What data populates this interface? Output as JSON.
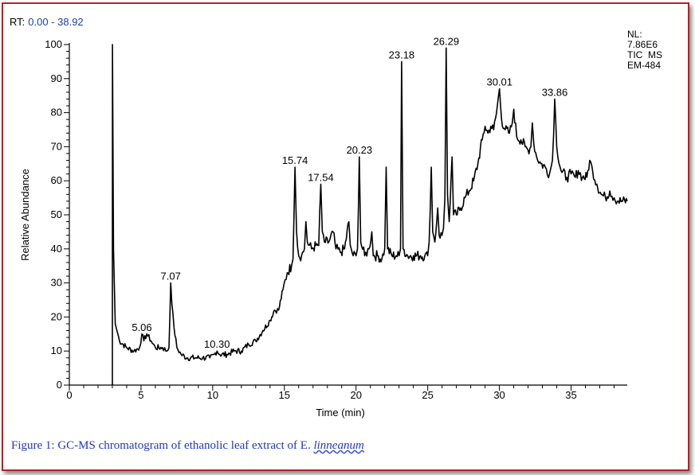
{
  "rt_label": "RT:",
  "rt_range": "0.00 - 38.92",
  "info": [
    "NL:",
    "7.86E6",
    "TIC  MS",
    "EM-484"
  ],
  "caption": {
    "text": "Figure 1: GC-MS chromatogram of ethanolic leaf extract of E. ",
    "species": "linneanum"
  },
  "chart_data": {
    "type": "line",
    "xlabel": "Time (min)",
    "ylabel": "Relative Abundance",
    "xlim": [
      0,
      38.92
    ],
    "ylim": [
      0,
      100
    ],
    "xticks": [
      0,
      5,
      10,
      15,
      20,
      25,
      30,
      35
    ],
    "yticks": [
      0,
      10,
      20,
      30,
      40,
      50,
      60,
      70,
      80,
      90,
      100
    ],
    "grid": false,
    "peak_labels": [
      {
        "label": "5.06",
        "x": 5.06,
        "y": 15
      },
      {
        "label": "7.07",
        "x": 7.07,
        "y": 30
      },
      {
        "label": "10.30",
        "x": 10.3,
        "y": 10
      },
      {
        "label": "15.74",
        "x": 15.74,
        "y": 64
      },
      {
        "label": "17.54",
        "x": 17.54,
        "y": 59
      },
      {
        "label": "20.23",
        "x": 20.23,
        "y": 67
      },
      {
        "label": "23.18",
        "x": 23.18,
        "y": 95
      },
      {
        "label": "26.29",
        "x": 26.29,
        "y": 99
      },
      {
        "label": "30.01",
        "x": 30.01,
        "y": 87
      },
      {
        "label": "33.86",
        "x": 33.86,
        "y": 84
      }
    ],
    "series": [
      {
        "values": [
          [
            3.0,
            0
          ],
          [
            3.01,
            100
          ],
          [
            3.08,
            40
          ],
          [
            3.2,
            18
          ],
          [
            3.5,
            13
          ],
          [
            4.0,
            11
          ],
          [
            4.5,
            10
          ],
          [
            4.9,
            11
          ],
          [
            5.06,
            15
          ],
          [
            5.2,
            13
          ],
          [
            5.4,
            15
          ],
          [
            5.7,
            13
          ],
          [
            6.0,
            11
          ],
          [
            6.5,
            11
          ],
          [
            6.8,
            10
          ],
          [
            6.95,
            11
          ],
          [
            7.07,
            30
          ],
          [
            7.15,
            24
          ],
          [
            7.3,
            17
          ],
          [
            7.5,
            11
          ],
          [
            7.8,
            9
          ],
          [
            8.2,
            8
          ],
          [
            8.8,
            8
          ],
          [
            9.3,
            8
          ],
          [
            9.8,
            8
          ],
          [
            10.1,
            9
          ],
          [
            10.3,
            10
          ],
          [
            10.5,
            9
          ],
          [
            11.0,
            9
          ],
          [
            11.5,
            10
          ],
          [
            12.0,
            10
          ],
          [
            12.5,
            12
          ],
          [
            13.0,
            13
          ],
          [
            13.5,
            16
          ],
          [
            14.0,
            19
          ],
          [
            14.3,
            22
          ],
          [
            14.6,
            22
          ],
          [
            14.9,
            28
          ],
          [
            15.2,
            33
          ],
          [
            15.5,
            35
          ],
          [
            15.6,
            37
          ],
          [
            15.74,
            64
          ],
          [
            15.85,
            45
          ],
          [
            16.0,
            38
          ],
          [
            16.2,
            38
          ],
          [
            16.4,
            40
          ],
          [
            16.5,
            48
          ],
          [
            16.6,
            42
          ],
          [
            16.9,
            40
          ],
          [
            17.2,
            41
          ],
          [
            17.4,
            41
          ],
          [
            17.54,
            59
          ],
          [
            17.65,
            45
          ],
          [
            17.8,
            42
          ],
          [
            18.1,
            42
          ],
          [
            18.4,
            45
          ],
          [
            18.6,
            40
          ],
          [
            18.9,
            39
          ],
          [
            19.2,
            40
          ],
          [
            19.5,
            48
          ],
          [
            19.6,
            41
          ],
          [
            19.8,
            38
          ],
          [
            20.0,
            38
          ],
          [
            20.1,
            40
          ],
          [
            20.23,
            67
          ],
          [
            20.33,
            42
          ],
          [
            20.6,
            38
          ],
          [
            20.9,
            40
          ],
          [
            21.1,
            45
          ],
          [
            21.2,
            38
          ],
          [
            21.5,
            38
          ],
          [
            21.8,
            37
          ],
          [
            22.0,
            40
          ],
          [
            22.1,
            64
          ],
          [
            22.2,
            40
          ],
          [
            22.5,
            38
          ],
          [
            22.8,
            38
          ],
          [
            23.0,
            38
          ],
          [
            23.1,
            40
          ],
          [
            23.18,
            95
          ],
          [
            23.28,
            40
          ],
          [
            23.6,
            38
          ],
          [
            24.0,
            38
          ],
          [
            24.5,
            38
          ],
          [
            24.8,
            38
          ],
          [
            25.0,
            38
          ],
          [
            25.1,
            42
          ],
          [
            25.25,
            64
          ],
          [
            25.35,
            45
          ],
          [
            25.5,
            42
          ],
          [
            25.7,
            52
          ],
          [
            25.8,
            44
          ],
          [
            26.0,
            44
          ],
          [
            26.1,
            46
          ],
          [
            26.2,
            55
          ],
          [
            26.29,
            99
          ],
          [
            26.38,
            56
          ],
          [
            26.5,
            48
          ],
          [
            26.7,
            67
          ],
          [
            26.8,
            50
          ],
          [
            27.0,
            50
          ],
          [
            27.3,
            52
          ],
          [
            27.6,
            55
          ],
          [
            27.9,
            57
          ],
          [
            28.2,
            60
          ],
          [
            28.5,
            65
          ],
          [
            28.8,
            72
          ],
          [
            29.0,
            76
          ],
          [
            29.2,
            74
          ],
          [
            29.4,
            76
          ],
          [
            29.6,
            75
          ],
          [
            29.8,
            80
          ],
          [
            30.01,
            87
          ],
          [
            30.15,
            78
          ],
          [
            30.4,
            75
          ],
          [
            30.7,
            74
          ],
          [
            30.9,
            77
          ],
          [
            31.0,
            81
          ],
          [
            31.2,
            73
          ],
          [
            31.5,
            72
          ],
          [
            31.8,
            70
          ],
          [
            32.0,
            69
          ],
          [
            32.2,
            70
          ],
          [
            32.3,
            77
          ],
          [
            32.4,
            71
          ],
          [
            32.6,
            67
          ],
          [
            32.9,
            65
          ],
          [
            33.2,
            64
          ],
          [
            33.5,
            62
          ],
          [
            33.7,
            66
          ],
          [
            33.86,
            84
          ],
          [
            34.0,
            70
          ],
          [
            34.3,
            63
          ],
          [
            34.7,
            61
          ],
          [
            35.0,
            62
          ],
          [
            35.3,
            61
          ],
          [
            35.5,
            63
          ],
          [
            35.8,
            61
          ],
          [
            36.1,
            61
          ],
          [
            36.3,
            66
          ],
          [
            36.5,
            63
          ],
          [
            36.8,
            59
          ],
          [
            37.1,
            56
          ],
          [
            37.4,
            55
          ],
          [
            37.7,
            57
          ],
          [
            38.0,
            55
          ],
          [
            38.3,
            54
          ],
          [
            38.6,
            54
          ],
          [
            38.92,
            54
          ]
        ]
      }
    ]
  }
}
